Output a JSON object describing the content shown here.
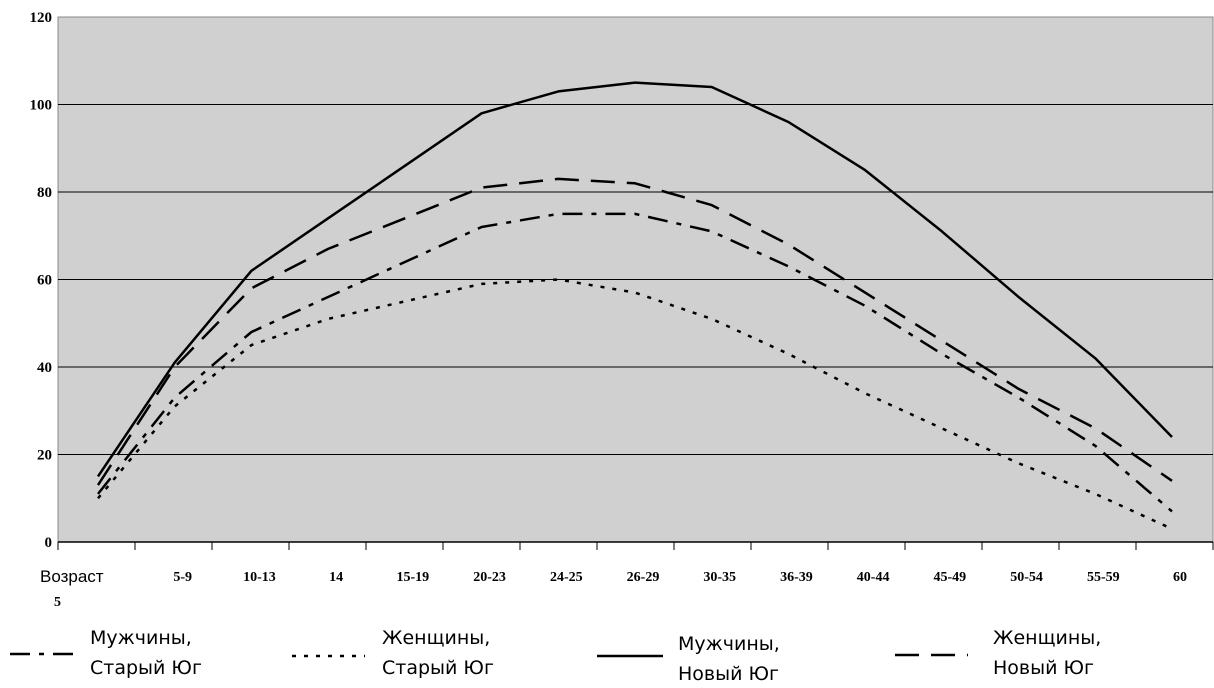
{
  "chart_data": {
    "type": "line",
    "categories": [
      "Возраст 5",
      "5-9",
      "10-13",
      "14",
      "15-19",
      "20-23",
      "24-25",
      "26-29",
      "30-35",
      "36-39",
      "40-44",
      "45-49",
      "50-54",
      "55-59",
      "60"
    ],
    "ylim": [
      0,
      120
    ],
    "yticks": [
      0,
      20,
      40,
      60,
      80,
      100,
      120
    ],
    "grid": true,
    "background": "#d0d0d0",
    "legend_position": "bottom",
    "series": [
      {
        "name": "Мужчины, Старый Юг",
        "style": "dash-dot",
        "values": [
          11,
          33,
          48,
          56,
          64,
          72,
          75,
          75,
          71,
          63,
          54,
          43,
          33,
          22,
          7
        ]
      },
      {
        "name": "Женщины, Старый Юг",
        "style": "dotted",
        "values": [
          10,
          31,
          45,
          51,
          55,
          59,
          60,
          57,
          51,
          43,
          34,
          26,
          18,
          11,
          3
        ]
      },
      {
        "name": "Мужчины, Новый Юг",
        "style": "solid",
        "values": [
          15,
          41,
          62,
          74,
          86,
          98,
          103,
          105,
          104,
          96,
          85,
          71,
          56,
          42,
          24
        ]
      },
      {
        "name": "Женщины, Новый Юг",
        "style": "long-dash",
        "values": [
          13,
          40,
          58,
          67,
          74,
          81,
          83,
          82,
          77,
          68,
          57,
          46,
          35,
          26,
          14
        ]
      }
    ]
  },
  "legend": [
    {
      "line1": "Мужчины,",
      "line2": "Старый Юг"
    },
    {
      "line1": "Женщины,",
      "line2": "Старый Юг"
    },
    {
      "line1": "Мужчины,",
      "line2": "Новый Юг"
    },
    {
      "line1": "Женщины,",
      "line2": "Новый Юг"
    }
  ],
  "xtick_first": {
    "line1": "Возраст",
    "line2": "5"
  }
}
